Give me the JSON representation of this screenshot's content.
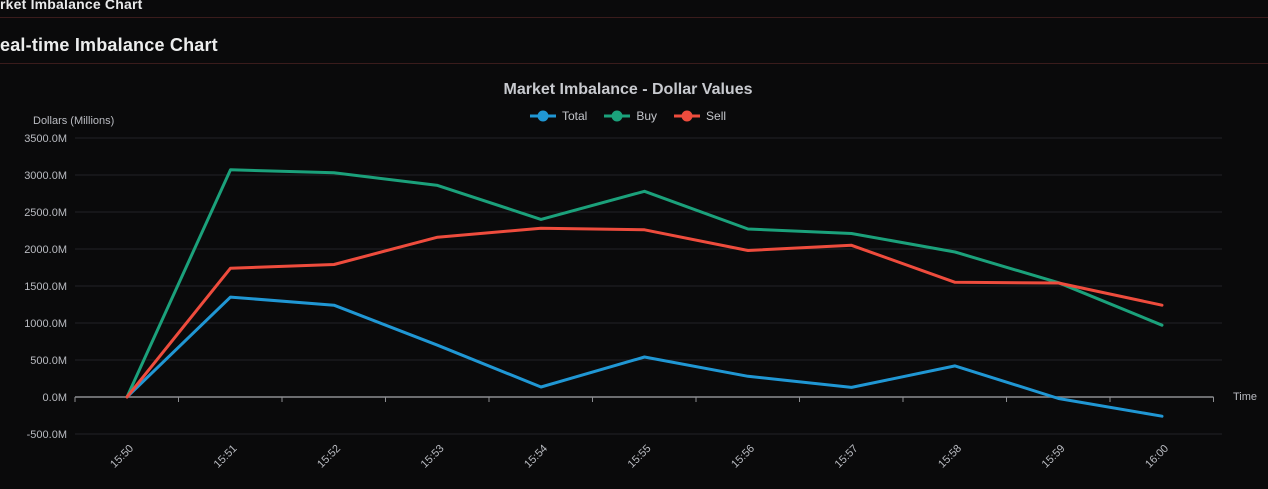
{
  "page": {
    "top_title": "rket Imbalance Chart",
    "panel_title": "eal-time Imbalance Chart"
  },
  "chart_data": {
    "type": "line",
    "title": "Market Imbalance - Dollar Values",
    "xlabel": "Time",
    "ylabel": "Dollars (Millions)",
    "categories": [
      "15:50",
      "15:51",
      "15:52",
      "15:53",
      "15:54",
      "15:55",
      "15:56",
      "15:57",
      "15:58",
      "15:59",
      "16:00"
    ],
    "series": [
      {
        "name": "Total",
        "color": "#2097d4",
        "values": [
          0,
          1350,
          1240,
          700,
          135,
          540,
          280,
          130,
          420,
          -20,
          -260
        ]
      },
      {
        "name": "Buy",
        "color": "#1ba17b",
        "values": [
          0,
          3070,
          3030,
          2860,
          2400,
          2780,
          2270,
          2210,
          1960,
          1545,
          970
        ]
      },
      {
        "name": "Sell",
        "color": "#ee4c3d",
        "values": [
          0,
          1740,
          1790,
          2160,
          2280,
          2260,
          1980,
          2050,
          1550,
          1540,
          1240
        ]
      }
    ],
    "ylim": [
      -500,
      3500
    ],
    "y_ticks": [
      {
        "value": 3500,
        "label": "3500.0M"
      },
      {
        "value": 3000,
        "label": "3000.0M"
      },
      {
        "value": 2500,
        "label": "2500.0M"
      },
      {
        "value": 2000,
        "label": "2000.0M"
      },
      {
        "value": 1500,
        "label": "1500.0M"
      },
      {
        "value": 1000,
        "label": "1000.0M"
      },
      {
        "value": 500,
        "label": "500.0M"
      },
      {
        "value": 0,
        "label": "0.0M"
      },
      {
        "value": -500,
        "label": "-500.0M"
      }
    ],
    "grid": true,
    "legend_position": "top"
  },
  "colors": {
    "background": "#0a0a0b",
    "divider": "#3a1c1c",
    "grid": "#232327",
    "axis": "#8d8e92",
    "tick_text": "#b9bbc1",
    "title_text": "#c8cacf",
    "header_text": "#e9eaeb"
  }
}
